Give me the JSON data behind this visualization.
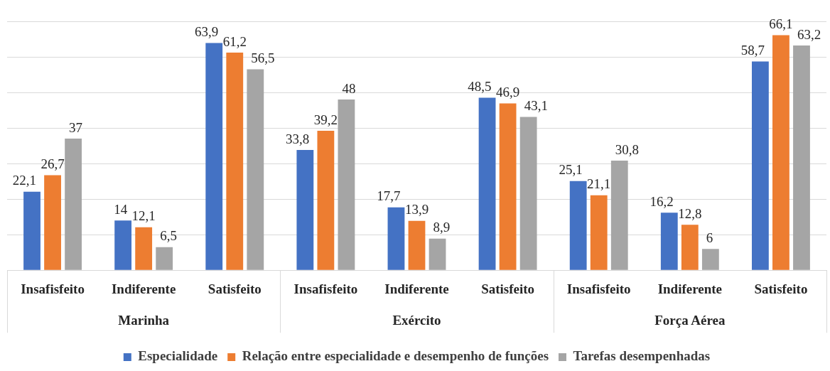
{
  "chart_data": {
    "type": "bar",
    "categories": [
      "Insafisfeito",
      "Indiferente",
      "Satisfeito",
      "Insafisfeito",
      "Indiferente",
      "Satisfeito",
      "Insafisfeito",
      "Indiferente",
      "Satisfeito"
    ],
    "series": [
      {
        "name": "Especialidade",
        "color": "#4472c4",
        "values": [
          22.1,
          14,
          63.9,
          33.8,
          17.7,
          48.5,
          25.1,
          16.2,
          58.7
        ],
        "value_labels": [
          "22,1",
          "14",
          "63,9",
          "33,8",
          "17,7",
          "48,5",
          "25,1",
          "16,2",
          "58,7"
        ]
      },
      {
        "name": "Relação entre especialidade e desempenho de funções",
        "color": "#ed7d31",
        "values": [
          26.7,
          12.1,
          61.2,
          39.2,
          13.9,
          46.9,
          21.1,
          12.8,
          66.1
        ],
        "value_labels": [
          "26,7",
          "12,1",
          "61,2",
          "39,2",
          "13,9",
          "46,9",
          "21,1",
          "12,8",
          "66,1"
        ]
      },
      {
        "name": "Tarefas desempenhadas",
        "color": "#a5a5a5",
        "values": [
          37,
          6.5,
          56.5,
          48,
          8.9,
          43.1,
          30.8,
          6,
          63.2
        ],
        "value_labels": [
          "37",
          "6,5",
          "56,5",
          "48",
          "8,9",
          "43,1",
          "30,8",
          "6",
          "63,2"
        ]
      }
    ],
    "annotations": [
      "Marinha",
      "Exército",
      "Força Aérea"
    ],
    "ylim": [
      0,
      70
    ],
    "yticks": [
      {
        "value": 0,
        "label": null
      },
      {
        "value": 10,
        "label": null
      },
      {
        "value": 20,
        "label": null
      },
      {
        "value": 30,
        "label": null
      },
      {
        "value": 40,
        "label": null
      },
      {
        "value": 50,
        "label": null
      },
      {
        "value": 60,
        "label": null
      },
      {
        "value": 70,
        "label": null
      }
    ],
    "tick_labels": "x",
    "grid": "y",
    "legend": "bottom"
  }
}
